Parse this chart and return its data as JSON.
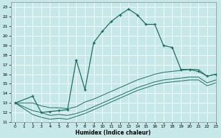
{
  "xlabel": "Humidex (Indice chaleur)",
  "background_color": "#c6e8e8",
  "grid_color": "#ffffff",
  "line_color": "#1a6b5a",
  "xlim": [
    -0.5,
    23
  ],
  "ylim": [
    11,
    23.5
  ],
  "xticks": [
    0,
    1,
    2,
    3,
    4,
    5,
    6,
    7,
    8,
    9,
    10,
    11,
    12,
    13,
    14,
    15,
    16,
    17,
    18,
    19,
    20,
    21,
    22,
    23
  ],
  "yticks": [
    11,
    12,
    13,
    14,
    15,
    16,
    17,
    18,
    19,
    20,
    21,
    22,
    23
  ],
  "main_line_x": [
    0,
    2,
    3,
    4,
    5,
    6,
    7,
    8,
    9,
    10,
    11,
    12,
    13,
    14,
    15,
    16,
    17,
    18,
    19,
    20,
    21,
    22,
    23
  ],
  "main_line_y": [
    13,
    13.7,
    12.0,
    12.1,
    12.2,
    12.3,
    17.5,
    14.4,
    19.3,
    20.5,
    21.5,
    22.2,
    22.8,
    22.2,
    21.2,
    21.2,
    19.0,
    18.8,
    16.5,
    16.5,
    16.3,
    15.8,
    16.0
  ],
  "line2_x": [
    0,
    2,
    3,
    4,
    5,
    6,
    7,
    8,
    9,
    10,
    11,
    12,
    13,
    14,
    15,
    16,
    17,
    18,
    19,
    20,
    21,
    22,
    23
  ],
  "line2_y": [
    13,
    13.0,
    12.7,
    12.5,
    12.5,
    12.4,
    12.6,
    13.1,
    13.4,
    13.8,
    14.2,
    14.6,
    15.0,
    15.4,
    15.7,
    16.0,
    16.2,
    16.3,
    16.4,
    16.5,
    16.5,
    15.8,
    16.0
  ],
  "line3_x": [
    0,
    2,
    3,
    4,
    5,
    6,
    7,
    8,
    9,
    10,
    11,
    12,
    13,
    14,
    15,
    16,
    17,
    18,
    19,
    20,
    21,
    22,
    23
  ],
  "line3_y": [
    13,
    12.2,
    12.0,
    11.7,
    11.8,
    11.7,
    11.9,
    12.2,
    12.6,
    13.0,
    13.4,
    13.8,
    14.2,
    14.6,
    14.9,
    15.2,
    15.4,
    15.5,
    15.6,
    15.7,
    15.7,
    15.1,
    15.4
  ],
  "line4_x": [
    0,
    2,
    3,
    4,
    5,
    6,
    7,
    8,
    9,
    10,
    11,
    12,
    13,
    14,
    15,
    16,
    17,
    18,
    19,
    20,
    21,
    22,
    23
  ],
  "line4_y": [
    13,
    11.8,
    11.5,
    11.3,
    11.4,
    11.3,
    11.6,
    11.9,
    12.3,
    12.7,
    13.1,
    13.5,
    13.9,
    14.3,
    14.6,
    14.9,
    15.1,
    15.2,
    15.3,
    15.4,
    15.4,
    14.8,
    15.1
  ]
}
